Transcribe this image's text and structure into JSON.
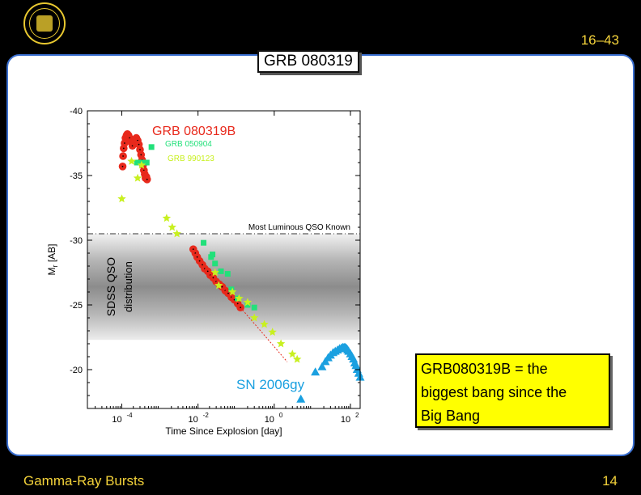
{
  "header": {
    "slide_counter": "16–43"
  },
  "slide": {
    "title": "GRB 080319"
  },
  "footer": {
    "section": "Gamma-Ray Bursts",
    "page": "14"
  },
  "note": {
    "lines": [
      "GRB080319B = the",
      "biggest bang since the",
      "Big Bang"
    ]
  },
  "colors": {
    "accent": "#f3d23a",
    "panel_border": "#3a6fd0",
    "grb080319b": "#e8291c",
    "grb050904": "#22e07a",
    "grb990123": "#c8f020",
    "sn2006gy": "#1aa0e0",
    "note_bg": "#ffff00"
  },
  "chart_data": {
    "type": "scatter",
    "xlabel": "Time Since Explosion [day]",
    "ylabel_main": "M",
    "ylabel_sub": "r",
    "ylabel_unit": " [AB]",
    "x_scale": "log",
    "xlim": [
      1.25e-05,
      180
    ],
    "ylim": [
      -40,
      -17
    ],
    "y_inverted": true,
    "x_ticks": [
      {
        "v": 0.0001,
        "base": "10",
        "exp": "-4"
      },
      {
        "v": 0.01,
        "base": "10",
        "exp": "-2"
      },
      {
        "v": 1,
        "base": "10",
        "exp": "0"
      },
      {
        "v": 100,
        "base": "10",
        "exp": "2"
      }
    ],
    "y_ticks": [
      -40,
      -35,
      -30,
      -25,
      -20
    ],
    "reference_line": {
      "y": -30.5,
      "label": "Most Luminous QSO Known"
    },
    "qso_band": {
      "y_top": -30.5,
      "y_bottom": -22.3,
      "label": "SDSS QSO",
      "sublabel": "distribution"
    },
    "series": [
      {
        "name": "GRB 080319B",
        "marker": "circle",
        "x": [
          0.000105,
          0.000108,
          0.000112,
          0.000118,
          0.000125,
          0.000133,
          0.00014,
          0.00015,
          0.00016,
          0.000175,
          0.00019,
          0.00021,
          0.000225,
          0.00024,
          0.00026,
          0.00028,
          0.0003,
          0.00032,
          0.00034,
          0.00036,
          0.00038,
          0.0004,
          0.00042,
          0.00044,
          0.00046,
          0.0075,
          0.0085,
          0.0095,
          0.011,
          0.013,
          0.015,
          0.018,
          0.021,
          0.025,
          0.03,
          0.036,
          0.043,
          0.052,
          0.062,
          0.075,
          0.09,
          0.11,
          0.13
        ],
        "y": [
          -35.7,
          -36.5,
          -37.1,
          -37.5,
          -37.9,
          -38.1,
          -38.2,
          -38.1,
          -37.9,
          -37.6,
          -37.3,
          -37.6,
          -37.8,
          -37.9,
          -37.7,
          -37.4,
          -37.0,
          -36.6,
          -36.2,
          -35.8,
          -35.4,
          -35.1,
          -34.8,
          -34.9,
          -34.7,
          -29.3,
          -29.0,
          -28.7,
          -28.4,
          -28.1,
          -27.8,
          -27.6,
          -27.3,
          -27.1,
          -26.8,
          -26.6,
          -26.4,
          -26.1,
          -25.9,
          -25.6,
          -25.4,
          -25.1,
          -24.8
        ]
      },
      {
        "name": "GRB 050904",
        "marker": "square",
        "x": [
          0.00025,
          0.00033,
          0.00045,
          0.0006,
          0.014,
          0.022,
          0.024,
          0.028,
          0.04,
          0.06,
          0.075,
          0.11,
          0.2,
          0.3
        ],
        "y": [
          -36.0,
          -36.0,
          -36.0,
          -37.2,
          -29.8,
          -28.7,
          -28.9,
          -28.2,
          -27.6,
          -27.4,
          -26.2,
          -25.5,
          -25.0,
          -24.8
        ]
      },
      {
        "name": "GRB 990123",
        "marker": "star",
        "x": [
          0.0001,
          0.00018,
          0.00026,
          0.00033,
          0.0015,
          0.0021,
          0.0028,
          0.028,
          0.035,
          0.08,
          0.12,
          0.2,
          0.3,
          0.55,
          0.9,
          1.5,
          3,
          4
        ],
        "y": [
          -33.2,
          -36.1,
          -34.8,
          -35.8,
          -31.7,
          -31.0,
          -30.5,
          -27.5,
          -26.5,
          -26.0,
          -25.5,
          -25.2,
          -24.0,
          -23.5,
          -22.9,
          -22.0,
          -21.2,
          -20.8
        ]
      },
      {
        "name": "SN 2006gy",
        "marker": "triangle",
        "x": [
          5,
          12,
          18,
          22,
          26,
          30,
          35,
          40,
          46,
          52,
          58,
          63,
          68,
          72,
          76,
          80,
          85,
          90,
          100,
          110,
          120,
          130,
          140,
          150,
          165,
          180
        ],
        "y": [
          -17.7,
          -19.8,
          -20.2,
          -20.6,
          -20.9,
          -21.1,
          -21.3,
          -21.4,
          -21.5,
          -21.6,
          -21.65,
          -21.7,
          -21.7,
          -21.7,
          -21.65,
          -21.6,
          -21.5,
          -21.4,
          -21.2,
          -21.0,
          -20.8,
          -20.5,
          -20.3,
          -20.0,
          -19.7,
          -19.4
        ]
      }
    ],
    "extrapolation": {
      "x": [
        0.13,
        2.2
      ],
      "y": [
        -24.8,
        -20.6
      ]
    },
    "series_labels": [
      {
        "text": "GRB 080319B",
        "series": "GRB 080319B"
      },
      {
        "text": "GRB 050904",
        "series": "GRB 050904"
      },
      {
        "text": "GRB 990123",
        "series": "GRB 990123"
      },
      {
        "text": "SN 2006gy",
        "series": "SN 2006gy"
      }
    ]
  }
}
